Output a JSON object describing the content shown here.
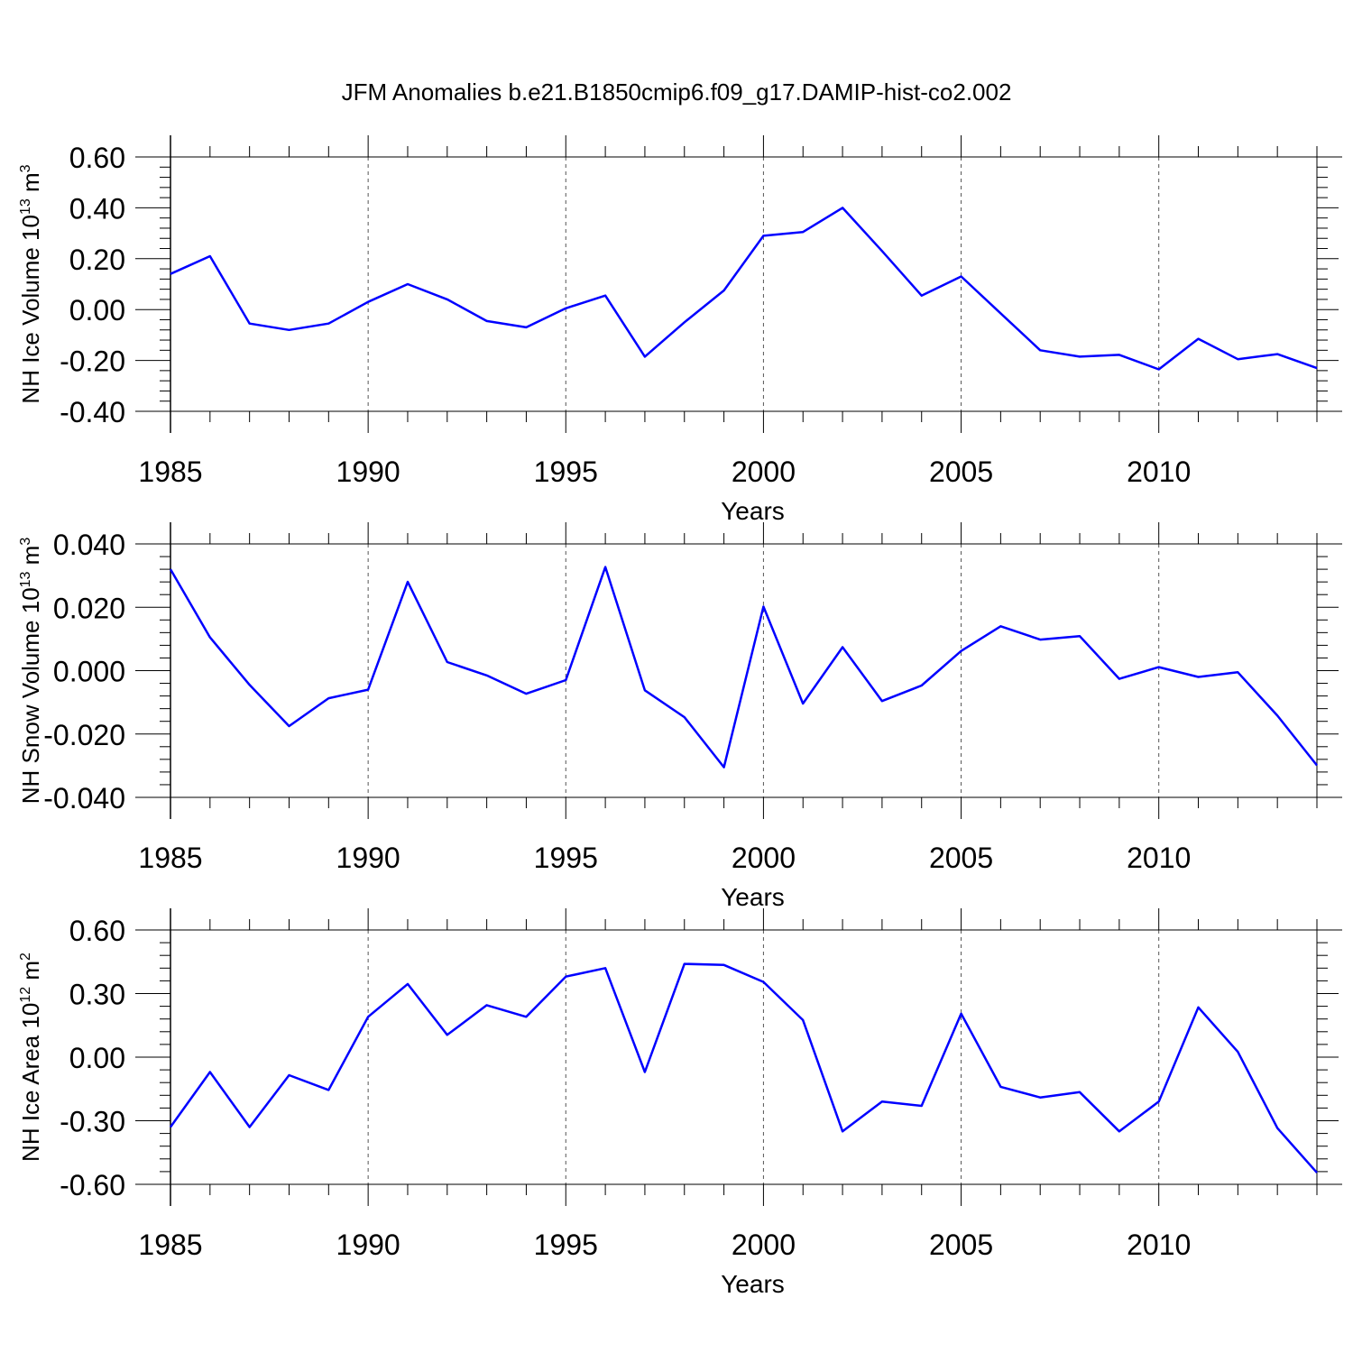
{
  "title": "JFM Anomalies b.e21.B1850cmip6.f09_g17.DAMIP-hist-co2.002",
  "line_color": "#0000ff",
  "chart_data": [
    {
      "type": "line",
      "ylabel": "NH Ice Volume 10",
      "ylabel_sup": "13",
      "ylabel_unit": " m",
      "ylabel_unit_sup": "3",
      "xlabel": "Years",
      "xlim": [
        1985,
        2014
      ],
      "ylim": [
        -0.4,
        0.6
      ],
      "yticks": [
        -0.4,
        -0.2,
        0.0,
        0.2,
        0.4,
        0.6
      ],
      "ytick_labels": [
        "-0.40",
        "-0.20",
        "0.00",
        "0.20",
        "0.40",
        "0.60"
      ],
      "xticks": [
        1985,
        1990,
        1995,
        2000,
        2005,
        2010
      ],
      "xtick_labels": [
        "1985",
        "1990",
        "1995",
        "2000",
        "2005",
        "2010"
      ],
      "x": [
        1985,
        1986,
        1987,
        1988,
        1989,
        1990,
        1991,
        1992,
        1993,
        1994,
        1995,
        1996,
        1997,
        1998,
        1999,
        2000,
        2001,
        2002,
        2003,
        2004,
        2005,
        2006,
        2007,
        2008,
        2009,
        2010,
        2011,
        2012,
        2013,
        2014
      ],
      "series": [
        {
          "name": "NH Ice Volume",
          "values": [
            0.14,
            0.21,
            -0.055,
            -0.08,
            -0.055,
            0.03,
            0.1,
            0.04,
            -0.045,
            -0.07,
            0.005,
            0.055,
            -0.185,
            -0.05,
            0.075,
            0.29,
            0.305,
            0.4,
            0.23,
            0.055,
            0.13,
            -0.015,
            -0.16,
            -0.185,
            -0.178,
            -0.235,
            -0.115,
            -0.195,
            -0.175,
            -0.23
          ]
        }
      ]
    },
    {
      "type": "line",
      "ylabel": "NH Snow Volume 10",
      "ylabel_sup": "13",
      "ylabel_unit": " m",
      "ylabel_unit_sup": "3",
      "xlabel": "Years",
      "xlim": [
        1985,
        2014
      ],
      "ylim": [
        -0.04,
        0.04
      ],
      "yticks": [
        -0.04,
        -0.02,
        0.0,
        0.02,
        0.04
      ],
      "ytick_labels": [
        "-0.040",
        "-0.020",
        "0.000",
        "0.020",
        "0.040"
      ],
      "xticks": [
        1985,
        1990,
        1995,
        2000,
        2005,
        2010
      ],
      "xtick_labels": [
        "1985",
        "1990",
        "1995",
        "2000",
        "2005",
        "2010"
      ],
      "x": [
        1985,
        1986,
        1987,
        1988,
        1989,
        1990,
        1991,
        1992,
        1993,
        1994,
        1995,
        1996,
        1997,
        1998,
        1999,
        2000,
        2001,
        2002,
        2003,
        2004,
        2005,
        2006,
        2007,
        2008,
        2009,
        2010,
        2011,
        2012,
        2013,
        2014
      ],
      "series": [
        {
          "name": "NH Snow Volume",
          "values": [
            0.032,
            0.0105,
            -0.0045,
            -0.0175,
            -0.0087,
            -0.006,
            0.028,
            0.0027,
            -0.0015,
            -0.0073,
            -0.003,
            0.0327,
            -0.0062,
            -0.0147,
            -0.0305,
            0.0202,
            -0.0104,
            0.0074,
            -0.0096,
            -0.0047,
            0.0062,
            0.014,
            0.0098,
            0.0109,
            -0.0026,
            0.0011,
            -0.002,
            -0.0005,
            -0.0142,
            -0.0299
          ]
        }
      ]
    },
    {
      "type": "line",
      "ylabel": "NH Ice Area 10",
      "ylabel_sup": "12",
      "ylabel_unit": " m",
      "ylabel_unit_sup": "2",
      "xlabel": "Years",
      "xlim": [
        1985,
        2014
      ],
      "ylim": [
        -0.6,
        0.6
      ],
      "yticks": [
        -0.6,
        -0.3,
        0.0,
        0.3,
        0.6
      ],
      "ytick_labels": [
        "-0.60",
        "-0.30",
        "0.00",
        "0.30",
        "0.60"
      ],
      "xticks": [
        1985,
        1990,
        1995,
        2000,
        2005,
        2010
      ],
      "xtick_labels": [
        "1985",
        "1990",
        "1995",
        "2000",
        "2005",
        "2010"
      ],
      "x": [
        1985,
        1986,
        1987,
        1988,
        1989,
        1990,
        1991,
        1992,
        1993,
        1994,
        1995,
        1996,
        1997,
        1998,
        1999,
        2000,
        2001,
        2002,
        2003,
        2004,
        2005,
        2006,
        2007,
        2008,
        2009,
        2010,
        2011,
        2012,
        2013,
        2014
      ],
      "series": [
        {
          "name": "NH Ice Area",
          "values": [
            -0.33,
            -0.07,
            -0.33,
            -0.085,
            -0.155,
            0.19,
            0.345,
            0.105,
            0.245,
            0.19,
            0.38,
            0.42,
            -0.07,
            0.44,
            0.435,
            0.355,
            0.175,
            -0.35,
            -0.21,
            -0.23,
            0.205,
            -0.14,
            -0.19,
            -0.165,
            -0.35,
            -0.21,
            0.235,
            0.025,
            -0.335,
            -0.545
          ]
        }
      ]
    }
  ]
}
